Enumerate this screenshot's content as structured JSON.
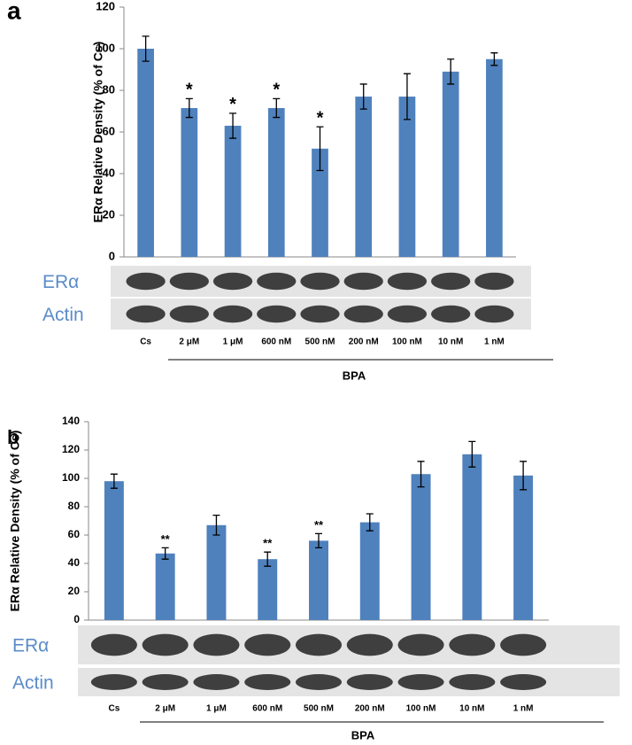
{
  "chart_data": [
    {
      "type": "bar",
      "panel": "a",
      "ylabel": "ERα Relative Density (% of Cs)",
      "color": "#4f81bd",
      "categories": [
        "Cs",
        "2 μM",
        "1 μM",
        "600 nM",
        "500 nM",
        "200 nM",
        "100 nM",
        "10 nM",
        "1 nM"
      ],
      "values": [
        100,
        71.5,
        63,
        71.5,
        52,
        77,
        77,
        89,
        95
      ],
      "errors": [
        6,
        4.5,
        6,
        4.5,
        10.5,
        6,
        11,
        6,
        3
      ],
      "annotations": [
        null,
        "*",
        "*",
        "*",
        "*",
        null,
        null,
        null,
        null
      ],
      "ylim": [
        0,
        120
      ],
      "yticks": [
        0,
        20,
        40,
        60,
        80,
        100,
        120
      ],
      "blot_labels": [
        "ERα",
        "Actin"
      ],
      "group_label": "BPA"
    },
    {
      "type": "bar",
      "panel": "b",
      "ylabel": "ERα Relative Density (% of Cs)",
      "color": "#4f81bd",
      "categories": [
        "Cs",
        "2 μM",
        "1 μM",
        "600  nM",
        "500  nM",
        "200  nM",
        "100 nM",
        "10 nM",
        "1 nM"
      ],
      "values": [
        98,
        47,
        67,
        43,
        56,
        69,
        103,
        117,
        102
      ],
      "errors": [
        5,
        4,
        7,
        5,
        5,
        6,
        9,
        9,
        10
      ],
      "annotations": [
        null,
        "**",
        null,
        "**",
        "**",
        null,
        null,
        null,
        null
      ],
      "ylim": [
        0,
        140
      ],
      "yticks": [
        0,
        20,
        40,
        60,
        80,
        100,
        120,
        140
      ],
      "blot_labels": [
        "ERα",
        "Actin"
      ],
      "group_label": "BPA"
    }
  ]
}
